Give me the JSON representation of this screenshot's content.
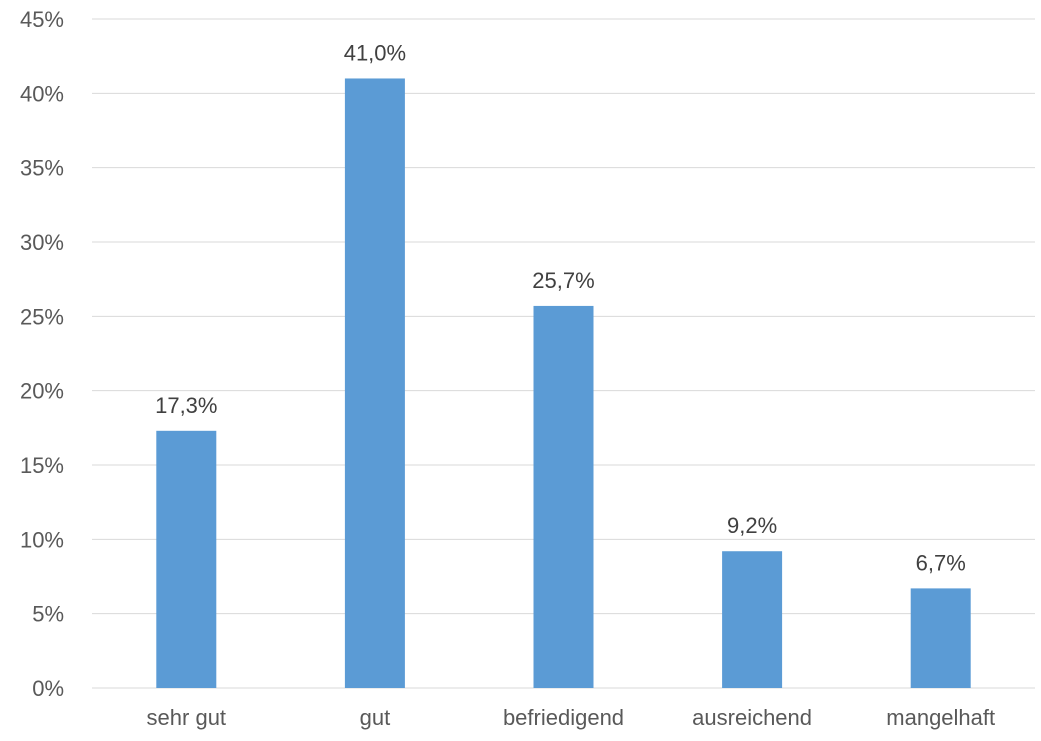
{
  "chart_data": {
    "type": "bar",
    "title": "",
    "xlabel": "",
    "ylabel": "",
    "categories": [
      "sehr gut",
      "gut",
      "befriedigend",
      "ausreichend",
      "mangelhaft"
    ],
    "values": [
      17.3,
      41.0,
      25.7,
      9.2,
      6.7
    ],
    "data_labels": [
      "17,3%",
      "41,0%",
      "25,7%",
      "9,2%",
      "6,7%"
    ],
    "ylim": [
      0,
      45
    ],
    "yticks": [
      0,
      5,
      10,
      15,
      20,
      25,
      30,
      35,
      40,
      45
    ],
    "ytick_labels": [
      "0%",
      "5%",
      "10%",
      "15%",
      "20%",
      "25%",
      "30%",
      "35%",
      "40%",
      "45%"
    ],
    "grid": true,
    "legend": "none",
    "colors": {
      "bar": "#5b9bd5"
    }
  }
}
